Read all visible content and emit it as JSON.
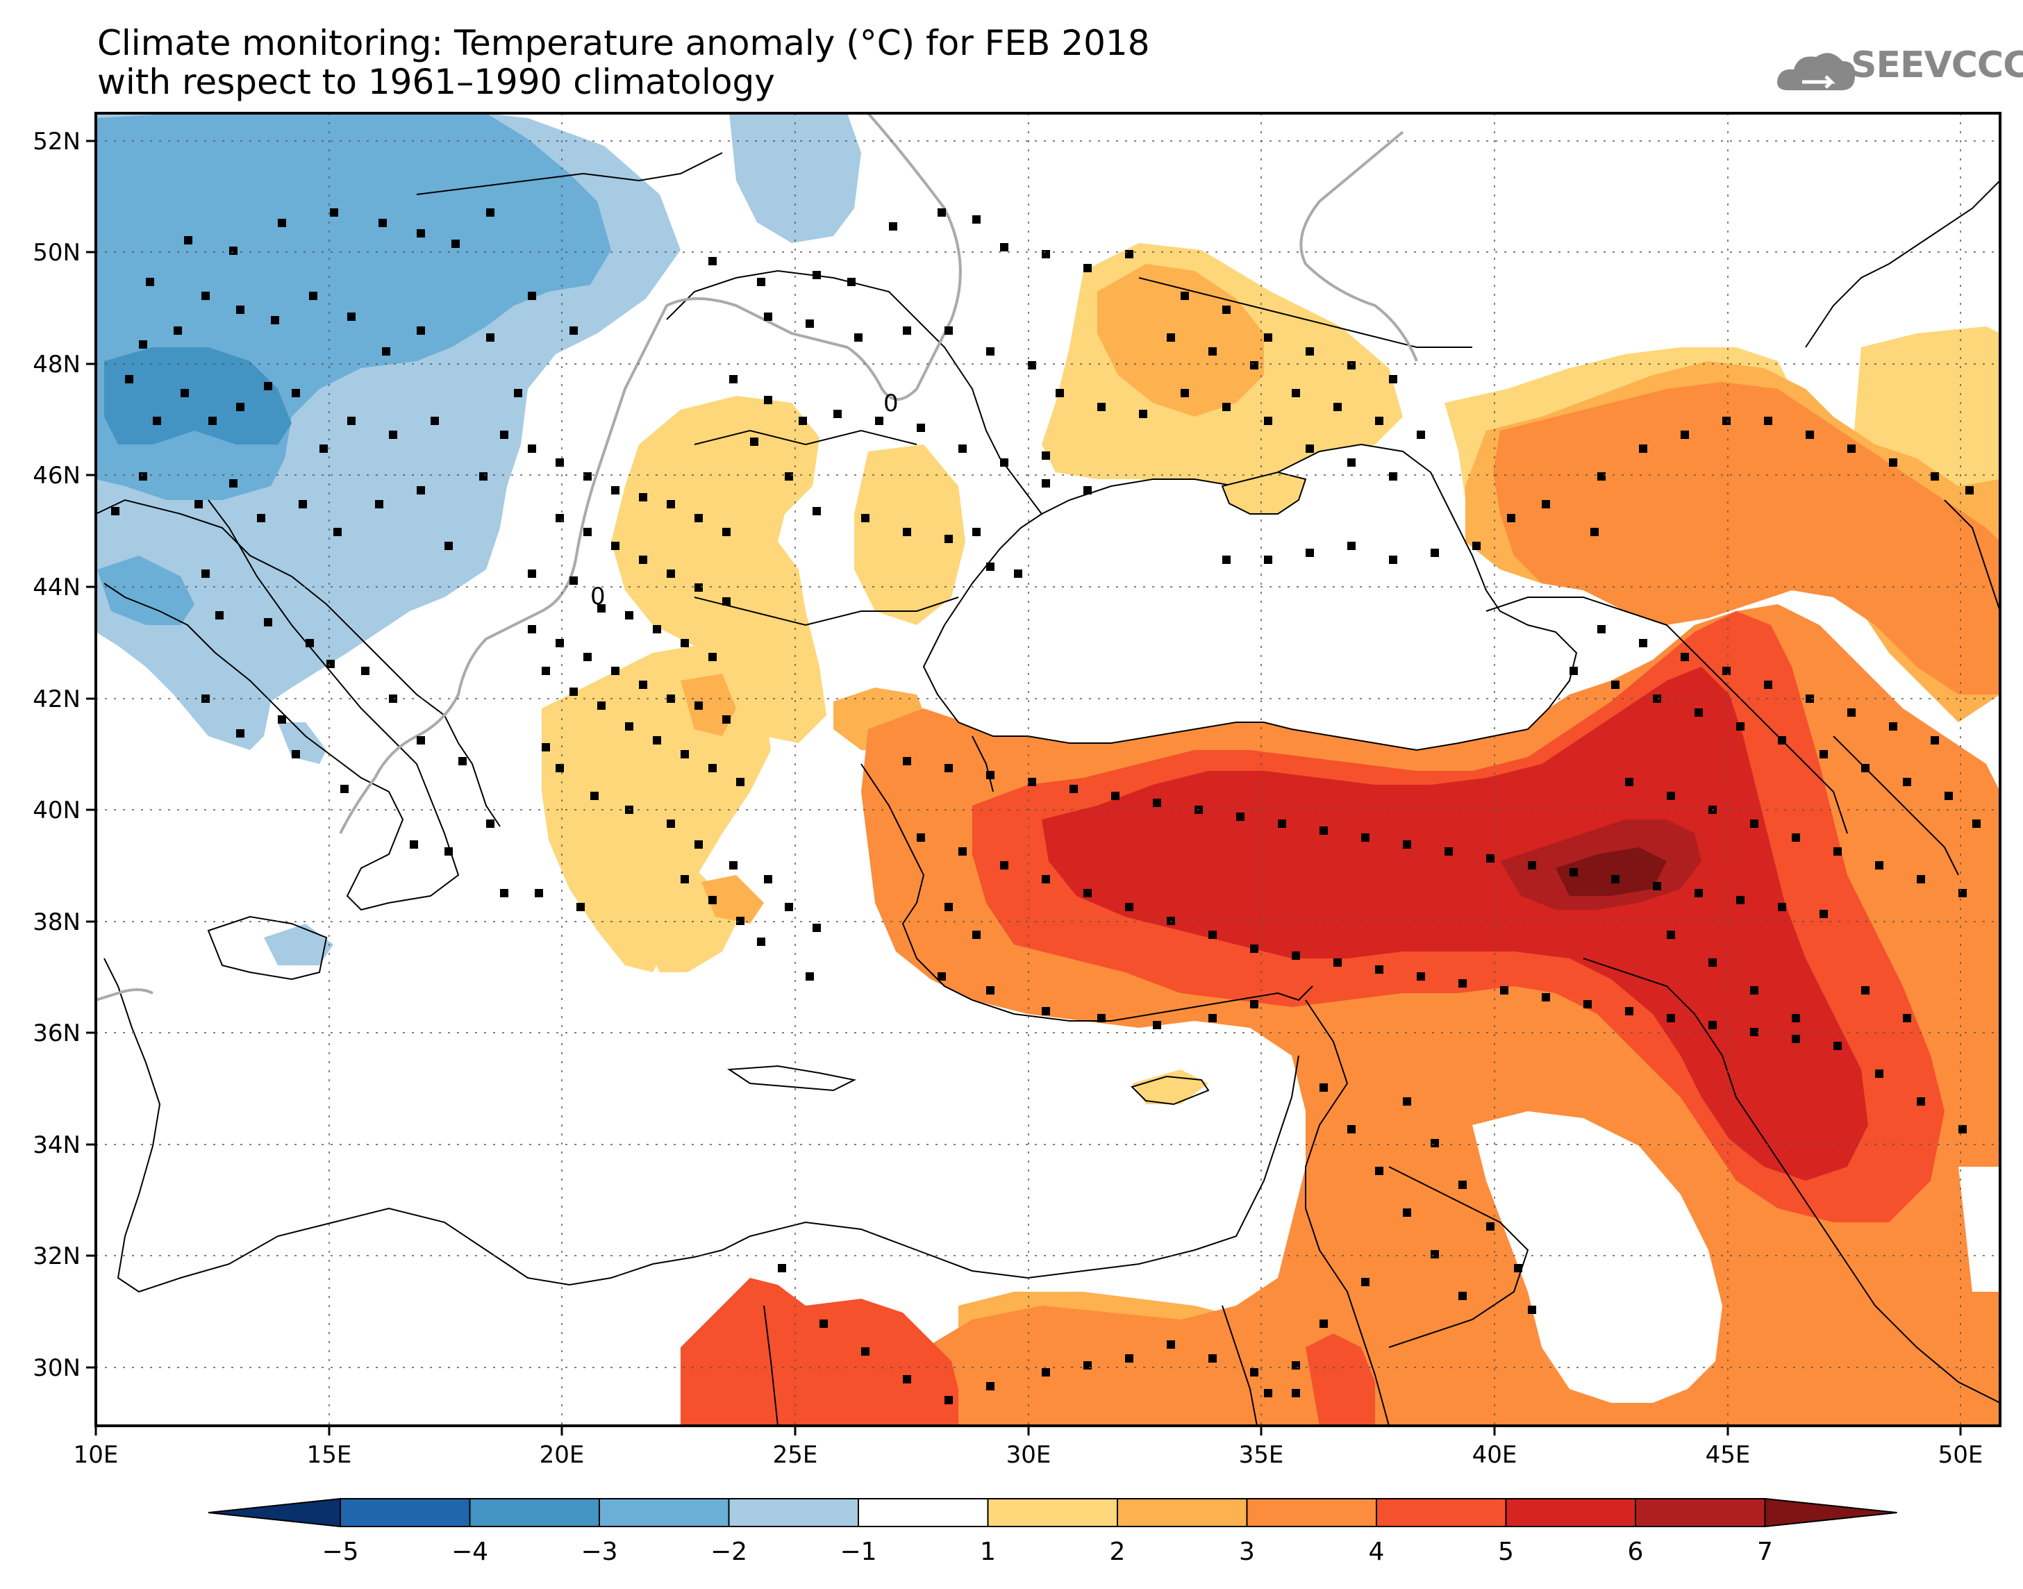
{
  "header": {
    "title_line1": "Climate monitoring: Temperature anomaly (°C) for FEB 2018",
    "title_line2": "with respect to 1961–1990 climatology",
    "logo_text": "SEEVCCC",
    "logo_icon": "cloud-icon"
  },
  "axes": {
    "lat_labels": [
      "52N",
      "50N",
      "48N",
      "46N",
      "44N",
      "42N",
      "40N",
      "38N",
      "36N",
      "34N",
      "32N",
      "30N"
    ],
    "lon_labels": [
      "10E",
      "15E",
      "20E",
      "25E",
      "30E",
      "35E",
      "40E",
      "45E",
      "50E"
    ]
  },
  "contour_labels": [
    "0",
    "0"
  ],
  "colorbar": {
    "labels": [
      "−5",
      "−4",
      "−3",
      "−2",
      "−1",
      "1",
      "2",
      "3",
      "4",
      "5",
      "6",
      "7"
    ],
    "colors": [
      "#08306b",
      "#2166ac",
      "#4393c3",
      "#6baed6",
      "#a6cbe3",
      "#ffffff",
      "#fdd779",
      "#fdb14f",
      "#fc8d3c",
      "#f4512c",
      "#d62421",
      "#b01f1f",
      "#7e1414"
    ]
  },
  "colors": {
    "blue_light": "#a6cbe3",
    "blue_mid": "#6baed6",
    "blue_dark": "#4393c3",
    "yellow": "#fdd779",
    "orange_light": "#fdb14f",
    "orange": "#fc8d3c",
    "red_orange": "#f4512c",
    "red": "#d62421",
    "dark_red": "#b01f1f"
  }
}
